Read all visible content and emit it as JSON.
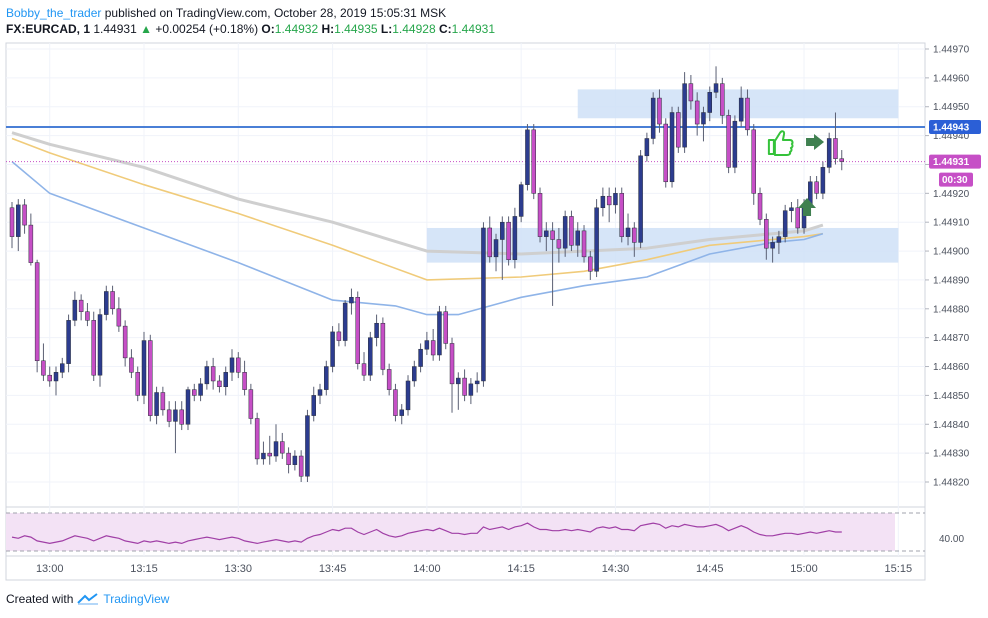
{
  "header": {
    "author": "Bobby_the_trader",
    "published": "published on TradingView.com, October 28, 2019 15:05:31 MSK",
    "symbol": "FX:EURCAD, 1",
    "last": "1.44931",
    "change": "+0.00254 (+0.18%)",
    "o_label": "O:",
    "o_value": "1.44932",
    "h_label": "H:",
    "h_value": "1.44935",
    "l_label": "L:",
    "l_value": "1.44928",
    "c_label": "C:",
    "c_value": "1.44931"
  },
  "footer": {
    "created_with": "Created with",
    "brand": "TradingView"
  },
  "colors": {
    "up_body": "#2c3c8f",
    "down_body": "#c64fc6",
    "wick": "#5a5f73",
    "resistance_line": "#4a7fd6",
    "zone_fill": "#cfe0f7",
    "ma_fast": "#8fb4e8",
    "ma_mid": "#f0cb7a",
    "ma_slow": "#cfcfcf",
    "rsi_line": "#a03fa6",
    "rsi_fill": "#f3e2f5",
    "arrow": "#3f8050",
    "thumb": "#35c23a",
    "price_tag": "#c64fc6",
    "level_tag": "#2b5fd6"
  },
  "price_tags": {
    "level": "1.44943",
    "current": "1.44931",
    "countdown": "00:30"
  },
  "icons": [
    "thumbs-up-icon",
    "arrow-right-icon",
    "arrow-up-icon",
    "tradingview-logo-icon"
  ],
  "chart_data": {
    "type": "candlestick",
    "title": "",
    "xlabel": "",
    "ylabel": "",
    "ylim": [
      1.44812,
      1.44974
    ],
    "y_ticks": [
      "1.44820",
      "1.44830",
      "1.44840",
      "1.44850",
      "1.44860",
      "1.44870",
      "1.44880",
      "1.44890",
      "1.44900",
      "1.44910",
      "1.44920",
      "1.44930",
      "1.44940",
      "1.44950",
      "1.44960",
      "1.44970"
    ],
    "x_ticks": [
      "13:00",
      "13:15",
      "13:30",
      "13:45",
      "14:00",
      "14:15",
      "14:30",
      "14:45",
      "15:00",
      "15:15"
    ],
    "x_start": "12:54",
    "x_step_minutes": 1,
    "ohlc": [
      [
        1.44915,
        1.44917,
        1.44901,
        1.44905
      ],
      [
        1.44905,
        1.44918,
        1.449,
        1.44916
      ],
      [
        1.44916,
        1.44918,
        1.44906,
        1.44909
      ],
      [
        1.44909,
        1.44913,
        1.44895,
        1.44896
      ],
      [
        1.44896,
        1.44897,
        1.44858,
        1.44862
      ],
      [
        1.44862,
        1.44868,
        1.44855,
        1.44857
      ],
      [
        1.44857,
        1.4486,
        1.44853,
        1.44855
      ],
      [
        1.44855,
        1.4486,
        1.4485,
        1.44858
      ],
      [
        1.44858,
        1.44863,
        1.44856,
        1.44861
      ],
      [
        1.44861,
        1.44878,
        1.44858,
        1.44876
      ],
      [
        1.44876,
        1.44886,
        1.44874,
        1.44883
      ],
      [
        1.44883,
        1.44885,
        1.44876,
        1.44879
      ],
      [
        1.44879,
        1.44882,
        1.44874,
        1.44876
      ],
      [
        1.44876,
        1.44879,
        1.44855,
        1.44857
      ],
      [
        1.44857,
        1.4488,
        1.44853,
        1.44878
      ],
      [
        1.44878,
        1.44888,
        1.44876,
        1.44886
      ],
      [
        1.44886,
        1.44888,
        1.44878,
        1.4488
      ],
      [
        1.4488,
        1.44884,
        1.44872,
        1.44874
      ],
      [
        1.44874,
        1.44876,
        1.4486,
        1.44863
      ],
      [
        1.44863,
        1.44866,
        1.44856,
        1.44858
      ],
      [
        1.44858,
        1.4486,
        1.44848,
        1.4485
      ],
      [
        1.4485,
        1.44872,
        1.44847,
        1.44869
      ],
      [
        1.44869,
        1.44871,
        1.44841,
        1.44843
      ],
      [
        1.44843,
        1.44853,
        1.4484,
        1.44851
      ],
      [
        1.44851,
        1.44853,
        1.44843,
        1.44845
      ],
      [
        1.44845,
        1.44848,
        1.44839,
        1.44841
      ],
      [
        1.44841,
        1.44848,
        1.4483,
        1.44845
      ],
      [
        1.44845,
        1.44848,
        1.44838,
        1.4484
      ],
      [
        1.4484,
        1.44853,
        1.44838,
        1.44852
      ],
      [
        1.44852,
        1.44854,
        1.44848,
        1.4485
      ],
      [
        1.4485,
        1.44856,
        1.44848,
        1.44854
      ],
      [
        1.44854,
        1.44862,
        1.44852,
        1.4486
      ],
      [
        1.4486,
        1.44863,
        1.44852,
        1.44855
      ],
      [
        1.44855,
        1.44857,
        1.44851,
        1.44853
      ],
      [
        1.44853,
        1.4486,
        1.4485,
        1.44858
      ],
      [
        1.44858,
        1.44866,
        1.44855,
        1.44863
      ],
      [
        1.44863,
        1.44865,
        1.44856,
        1.44858
      ],
      [
        1.44858,
        1.44862,
        1.4485,
        1.44852
      ],
      [
        1.44852,
        1.44854,
        1.4484,
        1.44842
      ],
      [
        1.44842,
        1.44844,
        1.44826,
        1.44828
      ],
      [
        1.44828,
        1.44834,
        1.44826,
        1.4483
      ],
      [
        1.4483,
        1.44836,
        1.44826,
        1.44829
      ],
      [
        1.44829,
        1.4484,
        1.44827,
        1.44834
      ],
      [
        1.44834,
        1.44837,
        1.44828,
        1.4483
      ],
      [
        1.4483,
        1.44832,
        1.44823,
        1.44826
      ],
      [
        1.44826,
        1.44831,
        1.44824,
        1.44829
      ],
      [
        1.44829,
        1.44831,
        1.4482,
        1.44822
      ],
      [
        1.44822,
        1.44845,
        1.4482,
        1.44843
      ],
      [
        1.44843,
        1.44853,
        1.44841,
        1.4485
      ],
      [
        1.4485,
        1.44854,
        1.44847,
        1.44852
      ],
      [
        1.44852,
        1.44862,
        1.4485,
        1.4486
      ],
      [
        1.4486,
        1.44874,
        1.44858,
        1.44872
      ],
      [
        1.44872,
        1.44875,
        1.44867,
        1.44869
      ],
      [
        1.44869,
        1.44883,
        1.44867,
        1.44882
      ],
      [
        1.44882,
        1.44887,
        1.44878,
        1.44884
      ],
      [
        1.44884,
        1.44886,
        1.44859,
        1.44861
      ],
      [
        1.44861,
        1.44865,
        1.44855,
        1.44857
      ],
      [
        1.44857,
        1.44872,
        1.44855,
        1.4487
      ],
      [
        1.4487,
        1.44878,
        1.44867,
        1.44875
      ],
      [
        1.44875,
        1.44877,
        1.44857,
        1.44859
      ],
      [
        1.44859,
        1.44861,
        1.4485,
        1.44852
      ],
      [
        1.44852,
        1.44854,
        1.44841,
        1.44843
      ],
      [
        1.44843,
        1.44847,
        1.4484,
        1.44845
      ],
      [
        1.44845,
        1.44857,
        1.44843,
        1.44855
      ],
      [
        1.44855,
        1.44862,
        1.44853,
        1.4486
      ],
      [
        1.4486,
        1.44868,
        1.44858,
        1.44866
      ],
      [
        1.44866,
        1.44872,
        1.44864,
        1.44869
      ],
      [
        1.44869,
        1.44873,
        1.44862,
        1.44864
      ],
      [
        1.44864,
        1.44881,
        1.44862,
        1.44879
      ],
      [
        1.44879,
        1.44881,
        1.44866,
        1.44868
      ],
      [
        1.44868,
        1.4487,
        1.44844,
        1.44854
      ],
      [
        1.44854,
        1.44858,
        1.44845,
        1.44856
      ],
      [
        1.44856,
        1.44859,
        1.44848,
        1.4485
      ],
      [
        1.4485,
        1.44856,
        1.44847,
        1.44854
      ],
      [
        1.44854,
        1.44858,
        1.44851,
        1.44855
      ],
      [
        1.44855,
        1.4491,
        1.44853,
        1.44908
      ],
      [
        1.44908,
        1.44912,
        1.44896,
        1.44898
      ],
      [
        1.44898,
        1.44906,
        1.44893,
        1.44904
      ],
      [
        1.44904,
        1.44912,
        1.4489,
        1.4491
      ],
      [
        1.4491,
        1.44912,
        1.44895,
        1.44897
      ],
      [
        1.44897,
        1.44915,
        1.44894,
        1.44912
      ],
      [
        1.44912,
        1.44924,
        1.4491,
        1.44923
      ],
      [
        1.44923,
        1.44944,
        1.44921,
        1.44942
      ],
      [
        1.44942,
        1.44944,
        1.44918,
        1.4492
      ],
      [
        1.4492,
        1.44922,
        1.44903,
        1.44905
      ],
      [
        1.44905,
        1.4491,
        1.449,
        1.44907
      ],
      [
        1.44907,
        1.4491,
        1.44881,
        1.44904
      ],
      [
        1.44904,
        1.44908,
        1.44896,
        1.44901
      ],
      [
        1.44901,
        1.44914,
        1.44898,
        1.44912
      ],
      [
        1.44912,
        1.44914,
        1.449,
        1.44902
      ],
      [
        1.44902,
        1.4491,
        1.44898,
        1.44907
      ],
      [
        1.44907,
        1.44909,
        1.44896,
        1.44898
      ],
      [
        1.44898,
        1.449,
        1.4489,
        1.44893
      ],
      [
        1.44893,
        1.44918,
        1.44891,
        1.44915
      ],
      [
        1.44915,
        1.44922,
        1.44912,
        1.44919
      ],
      [
        1.44919,
        1.44922,
        1.4491,
        1.44916
      ],
      [
        1.44916,
        1.44922,
        1.44913,
        1.4492
      ],
      [
        1.4492,
        1.44922,
        1.44903,
        1.44905
      ],
      [
        1.44905,
        1.44913,
        1.44902,
        1.44908
      ],
      [
        1.44908,
        1.4491,
        1.44898,
        1.44903
      ],
      [
        1.44903,
        1.44935,
        1.44901,
        1.44933
      ],
      [
        1.44933,
        1.44941,
        1.44931,
        1.44939
      ],
      [
        1.44939,
        1.44955,
        1.44937,
        1.44953
      ],
      [
        1.44953,
        1.44956,
        1.44941,
        1.44944
      ],
      [
        1.44944,
        1.44946,
        1.44922,
        1.44924
      ],
      [
        1.44924,
        1.4495,
        1.44922,
        1.44948
      ],
      [
        1.44948,
        1.4495,
        1.44934,
        1.44936
      ],
      [
        1.44936,
        1.44962,
        1.44934,
        1.44958
      ],
      [
        1.44958,
        1.44961,
        1.44949,
        1.44952
      ],
      [
        1.44952,
        1.44955,
        1.4494,
        1.44944
      ],
      [
        1.44944,
        1.4495,
        1.44938,
        1.44948
      ],
      [
        1.44948,
        1.44957,
        1.44945,
        1.44955
      ],
      [
        1.44955,
        1.44964,
        1.44953,
        1.44958
      ],
      [
        1.44958,
        1.4496,
        1.44944,
        1.44947
      ],
      [
        1.44947,
        1.44949,
        1.44927,
        1.44929
      ],
      [
        1.44929,
        1.44947,
        1.44927,
        1.44945
      ],
      [
        1.44945,
        1.44957,
        1.44943,
        1.44953
      ],
      [
        1.44953,
        1.44956,
        1.4494,
        1.44942
      ],
      [
        1.44942,
        1.44944,
        1.44916,
        1.4492
      ],
      [
        1.4492,
        1.44922,
        1.44909,
        1.44911
      ],
      [
        1.44911,
        1.44913,
        1.44897,
        1.44901
      ],
      [
        1.44901,
        1.44905,
        1.44896,
        1.44903
      ],
      [
        1.44903,
        1.44907,
        1.44899,
        1.44905
      ],
      [
        1.44905,
        1.44916,
        1.44903,
        1.44914
      ],
      [
        1.44914,
        1.44917,
        1.4491,
        1.44915
      ],
      [
        1.44915,
        1.44918,
        1.44906,
        1.44908
      ],
      [
        1.44908,
        1.44918,
        1.44906,
        1.44916
      ],
      [
        1.44916,
        1.44926,
        1.44914,
        1.44924
      ],
      [
        1.44924,
        1.44926,
        1.44918,
        1.4492
      ],
      [
        1.4492,
        1.44931,
        1.44918,
        1.44929
      ],
      [
        1.44929,
        1.44941,
        1.44927,
        1.44939
      ],
      [
        1.44939,
        1.44948,
        1.4493,
        1.44932
      ],
      [
        1.44932,
        1.44935,
        1.44928,
        1.44931
      ]
    ],
    "moving_averages": [
      {
        "color_key": "ma_fast",
        "points": [
          [
            "12:54",
            1.44931
          ],
          [
            "13:00",
            1.4492
          ],
          [
            "13:15",
            1.44908
          ],
          [
            "13:30",
            1.44896
          ],
          [
            "13:45",
            1.44883
          ],
          [
            "13:55",
            1.44881
          ],
          [
            "14:00",
            1.44878
          ],
          [
            "14:05",
            1.44878
          ],
          [
            "14:15",
            1.44884
          ],
          [
            "14:25",
            1.44888
          ],
          [
            "14:35",
            1.44891
          ],
          [
            "14:45",
            1.44899
          ],
          [
            "14:55",
            1.44903
          ],
          [
            "15:00",
            1.44904
          ],
          [
            "15:03",
            1.44906
          ]
        ]
      },
      {
        "color_key": "ma_mid",
        "points": [
          [
            "12:54",
            1.44939
          ],
          [
            "13:00",
            1.44934
          ],
          [
            "13:15",
            1.44923
          ],
          [
            "13:30",
            1.44913
          ],
          [
            "13:45",
            1.44902
          ],
          [
            "14:00",
            1.4489
          ],
          [
            "14:15",
            1.44891
          ],
          [
            "14:25",
            1.44893
          ],
          [
            "14:35",
            1.44897
          ],
          [
            "14:45",
            1.44902
          ],
          [
            "14:55",
            1.44904
          ],
          [
            "15:00",
            1.44905
          ],
          [
            "15:03",
            1.44906
          ]
        ]
      },
      {
        "color_key": "ma_slow",
        "points": [
          [
            "12:54",
            1.44941
          ],
          [
            "13:00",
            1.44937
          ],
          [
            "13:15",
            1.44929
          ],
          [
            "13:30",
            1.44918
          ],
          [
            "13:45",
            1.4491
          ],
          [
            "14:00",
            1.449
          ],
          [
            "14:15",
            1.44899
          ],
          [
            "14:25",
            1.449
          ],
          [
            "14:35",
            1.44901
          ],
          [
            "14:45",
            1.44904
          ],
          [
            "14:55",
            1.44906
          ],
          [
            "15:00",
            1.44907
          ],
          [
            "15:03",
            1.44909
          ]
        ]
      }
    ],
    "resistance_level": 1.44943,
    "current_price": 1.44931,
    "zones": [
      {
        "from": "14:24",
        "to": "15:15",
        "low": 1.44946,
        "high": 1.44956
      },
      {
        "from": "14:00",
        "to": "15:15",
        "low": 1.44896,
        "high": 1.44908
      }
    ],
    "rsi": {
      "level_label": "40.00",
      "level": 40,
      "values": [
        41,
        40,
        42,
        41,
        38,
        37,
        36,
        37,
        38,
        40,
        42,
        41,
        40,
        38,
        40,
        42,
        41,
        40,
        38,
        37,
        36,
        38,
        37,
        38,
        37,
        36,
        37,
        36,
        38,
        39,
        40,
        41,
        40,
        39,
        40,
        41,
        40,
        38,
        37,
        36,
        37,
        38,
        39,
        38,
        37,
        38,
        37,
        40,
        42,
        43,
        45,
        47,
        46,
        48,
        48,
        45,
        43,
        45,
        47,
        44,
        42,
        41,
        42,
        44,
        45,
        46,
        47,
        46,
        48,
        46,
        44,
        44,
        43,
        44,
        44,
        49,
        47,
        48,
        49,
        47,
        49,
        50,
        52,
        49,
        47,
        47,
        46,
        46,
        47,
        46,
        47,
        46,
        45,
        48,
        49,
        48,
        49,
        47,
        47,
        46,
        50,
        51,
        52,
        51,
        48,
        50,
        49,
        51,
        50,
        49,
        49,
        50,
        51,
        49,
        46,
        48,
        50,
        48,
        45,
        43,
        42,
        42,
        43,
        44,
        44,
        43,
        44,
        45,
        44,
        45,
        46,
        45,
        45
      ]
    },
    "annotations": [
      {
        "icon": "thumbs-up-icon",
        "time": "14:56"
      },
      {
        "icon": "arrow-right-icon",
        "time": "15:00"
      },
      {
        "icon": "arrow-up-icon",
        "time": "15:00"
      }
    ]
  }
}
